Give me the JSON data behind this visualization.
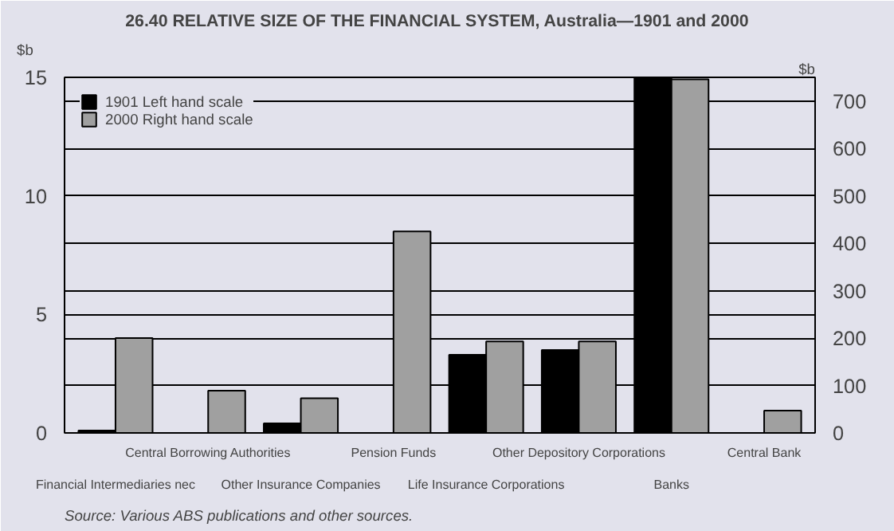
{
  "chart_data": {
    "type": "bar",
    "title": "26.40  RELATIVE SIZE OF THE FINANCIAL SYSTEM, Australia—1901 and 2000",
    "categories": [
      "Financial Intermediaries nec",
      "Central Borrowing Authorities",
      "Other Insurance Companies",
      "Pension Funds",
      "Life Insurance Corporations",
      "Other Depository Corporations",
      "Banks",
      "Central Bank"
    ],
    "series": [
      {
        "name": "1901 Left hand scale",
        "color": "#000000",
        "values": [
          0.1,
          0,
          0.4,
          0,
          3.3,
          3.5,
          15,
          0
        ]
      },
      {
        "name": "2000 Right hand scale",
        "color": "#a0a0a0",
        "axis": "y2",
        "values": [
          200,
          89,
          73,
          425,
          193,
          193,
          746,
          47
        ]
      }
    ],
    "ylabel": "$b",
    "y2label": "$b",
    "ylim": [
      0,
      15
    ],
    "yticks": [
      0,
      5,
      10,
      15
    ],
    "y2lim": [
      0,
      750
    ],
    "y2ticks": [
      0,
      100,
      200,
      300,
      400,
      500,
      600,
      700
    ],
    "grid": "y",
    "legend": "top left",
    "annotations": [
      "Source: Various ABS publications and other sources."
    ]
  }
}
